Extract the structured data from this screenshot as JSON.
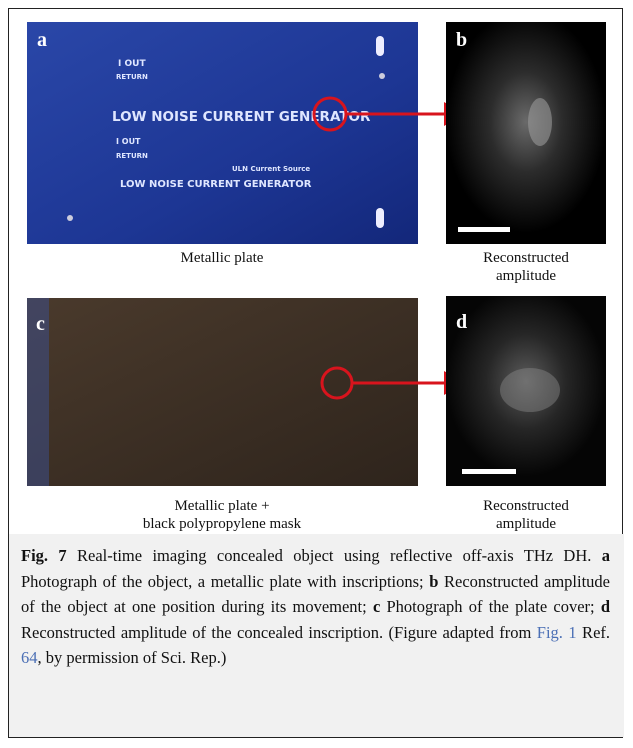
{
  "panels": [
    {
      "label": "a",
      "inscriptions": [
        "I OUT",
        "RETURN",
        "LOW NOISE CURRENT GENERATOR",
        "I OUT",
        "RETURN",
        "ULN Current Source",
        "LOW NOISE CURRENT GENERATOR"
      ],
      "caption_lines": [
        "Metallic plate"
      ]
    },
    {
      "label": "b",
      "caption_lines": [
        "Reconstructed",
        "amplitude"
      ]
    },
    {
      "label": "c",
      "caption_lines": [
        "Metallic plate +",
        "black polypropylene mask"
      ]
    },
    {
      "label": "d",
      "caption_lines": [
        "Reconstructed",
        "amplitude"
      ]
    }
  ],
  "caption": {
    "segments": [
      {
        "text": "Fig. 7",
        "style": "bold"
      },
      " Real-time imaging concealed object using reflective off-axis THz DH. ",
      {
        "text": "a",
        "style": "bold"
      },
      " Photograph of the object, a metallic plate with inscriptions; ",
      {
        "text": "b",
        "style": "bold"
      },
      " Reconstructed amplitude of the object at one position during its movement; ",
      {
        "text": "c",
        "style": "bold"
      },
      " Photograph of the plate cover; ",
      {
        "text": "d",
        "style": "bold"
      },
      " Reconstructed amplitude of the concealed inscription. (Figure adapted from ",
      {
        "text": "Fig. 1",
        "style": "link"
      },
      " Ref. ",
      {
        "text": "64",
        "style": "link"
      },
      ", by permission of Sci. Rep.)"
    ]
  }
}
